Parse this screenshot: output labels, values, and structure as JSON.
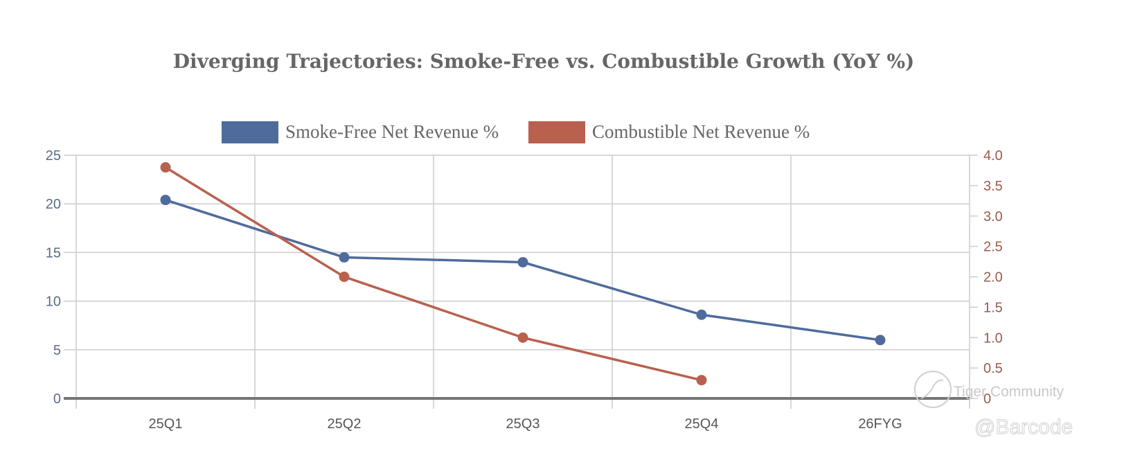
{
  "chart_data": {
    "type": "line",
    "title": "Diverging Trajectories: Smoke-Free vs. Combustible Growth (YoY %)",
    "categories": [
      "25Q1",
      "25Q2",
      "25Q3",
      "25Q4",
      "26FYG"
    ],
    "series": [
      {
        "name": "Smoke-Free Net Revenue %",
        "axis": "left",
        "color": "#4f6b9c",
        "values": [
          20.4,
          14.5,
          14.0,
          8.6,
          6.0
        ]
      },
      {
        "name": "Combustible Net Revenue %",
        "axis": "right",
        "color": "#b9604e",
        "values": [
          3.8,
          2.0,
          1.0,
          0.3,
          null
        ]
      }
    ],
    "xlabel": "",
    "ylabel": "",
    "y_left": {
      "range": [
        0,
        25
      ],
      "ticks": [
        "0",
        "5",
        "10",
        "15",
        "20",
        "25"
      ],
      "color": "#5b6b86"
    },
    "y_right": {
      "range": [
        0,
        4.0
      ],
      "ticks": [
        "0",
        "0.5",
        "1.0",
        "1.5",
        "2.0",
        "2.5",
        "3.0",
        "3.5",
        "4.0"
      ],
      "color": "#9c5a4a"
    },
    "grid": true,
    "legend_position": "top-center"
  },
  "watermark": {
    "brand": "Tiger Community",
    "handle": "@Barcode"
  }
}
